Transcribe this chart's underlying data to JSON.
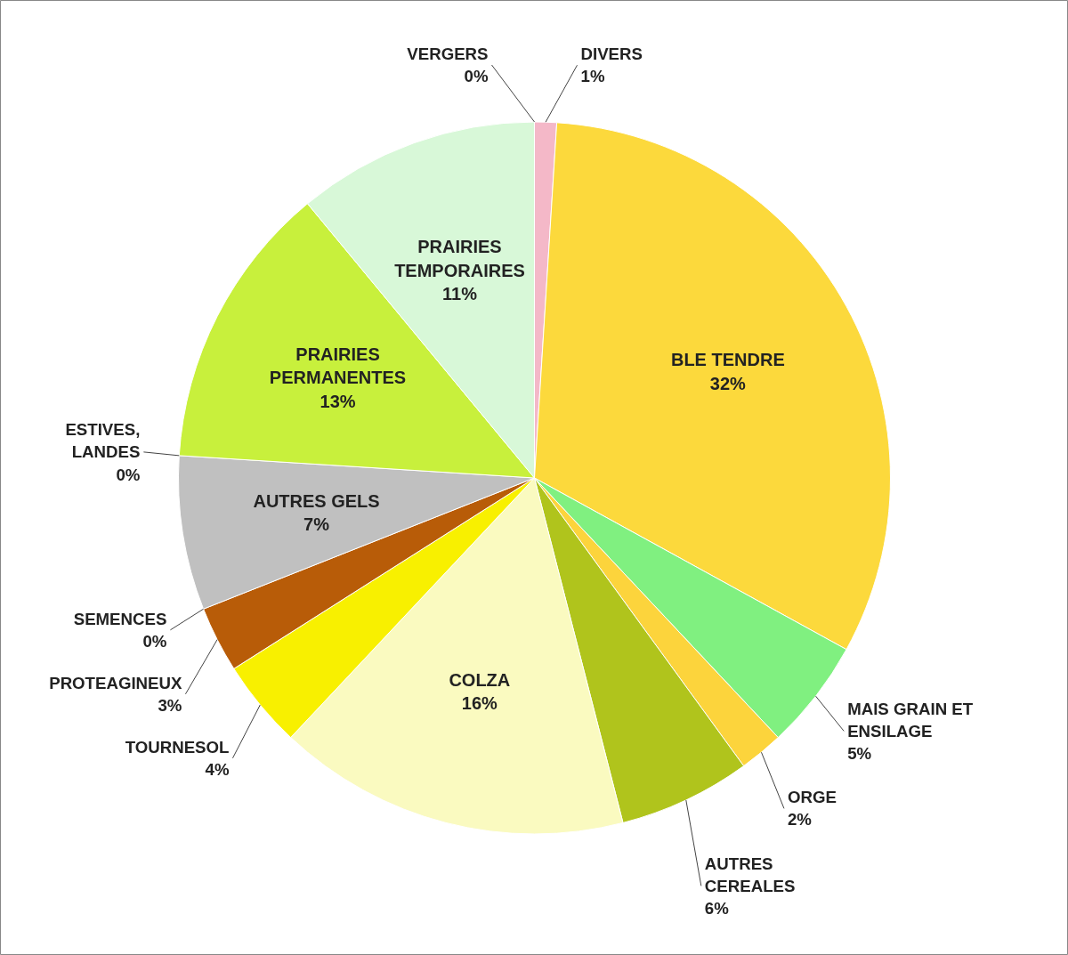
{
  "chart_data": {
    "type": "pie",
    "categories": [
      "DIVERS",
      "BLE TENDRE",
      "MAIS GRAIN ET\nENSILAGE",
      "ORGE",
      "AUTRES\nCEREALES",
      "COLZA",
      "TOURNESOL",
      "PROTEAGINEUX",
      "SEMENCES",
      "AUTRES GELS",
      "ESTIVES,\nLANDES",
      "PRAIRIES\nPERMANENTES",
      "PRAIRIES\nTEMPORAIRES",
      "VERGERS"
    ],
    "values": [
      1,
      32,
      5,
      2,
      6,
      16,
      4,
      3,
      0,
      7,
      0,
      13,
      11,
      0
    ],
    "colors": [
      "#f4b8c8",
      "#fcd93c",
      "#80f080",
      "#fcd43c",
      "#b0c41c",
      "#fafac0",
      "#f8f000",
      "#b85c08",
      "#e0a060",
      "#c0c0c0",
      "#a0a0a0",
      "#c8f03c",
      "#d8f8d8",
      "#90d090"
    ],
    "value_labels": [
      "1%",
      "32%",
      "5%",
      "2%",
      "6%",
      "16%",
      "4%",
      "3%",
      "0%",
      "7%",
      "0%",
      "13%",
      "11%",
      "0%"
    ]
  }
}
